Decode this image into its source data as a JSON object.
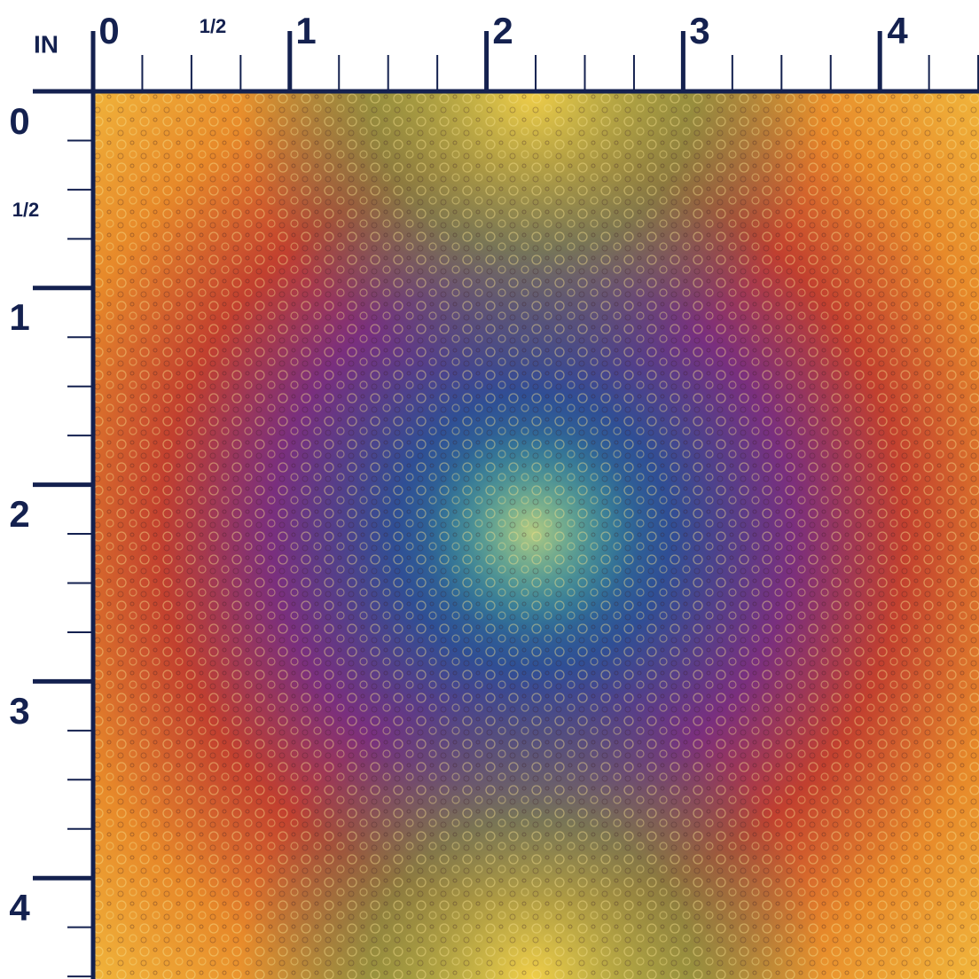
{
  "unit": "IN",
  "top_ruler": {
    "labels": [
      "0",
      "1/2",
      "1",
      "2",
      "3",
      "4"
    ]
  },
  "left_ruler": {
    "labels": [
      "0",
      "1/2",
      "1",
      "2",
      "3",
      "4"
    ]
  }
}
